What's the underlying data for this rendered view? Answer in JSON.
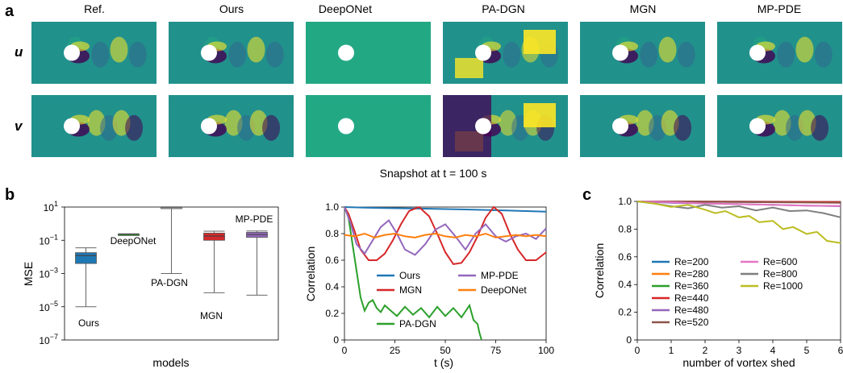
{
  "panel_letters": {
    "a": "a",
    "b": "b",
    "c": "c"
  },
  "panel_a": {
    "columns": [
      "Ref.",
      "Ours",
      "DeepONet",
      "PA-DGN",
      "MGN",
      "MP-PDE"
    ],
    "rows": [
      "u",
      "v"
    ],
    "caption": "Snapshot at t = 100 s",
    "colors": {
      "dark": "#440154",
      "mid": "#21918c",
      "bright": "#fde725",
      "teal": "#23a884",
      "blue": "#31688e"
    }
  },
  "chart_data": [
    {
      "type": "box",
      "xlabel": "models",
      "ylabel": "MSE",
      "ylog": true,
      "ylim_exp": [
        -7,
        1
      ],
      "yticks": [
        {
          "exp": 1,
          "label": "10",
          "sup": "1"
        },
        {
          "exp": -1,
          "label": "10",
          "sup": "−1"
        },
        {
          "exp": -3,
          "label": "10",
          "sup": "−3"
        },
        {
          "exp": -5,
          "label": "10",
          "sup": "−5"
        },
        {
          "exp": -7,
          "label": "10",
          "sup": "−7"
        }
      ],
      "boxes": [
        {
          "label": "Ours",
          "color": "#1f77b4",
          "whislo": 1e-05,
          "q1": 0.004,
          "med": 0.012,
          "q3": 0.018,
          "whishi": 0.035
        },
        {
          "label": "DeepONet",
          "color": "#2ca02c",
          "whislo": 0.22,
          "q1": 0.23,
          "med": 0.235,
          "q3": 0.24,
          "whishi": 0.245
        },
        {
          "label": "PA-DGN",
          "color": "#aaaaaa",
          "whislo": 0.001,
          "q1": 10,
          "med": 10,
          "q3": 10,
          "whishi": 10
        },
        {
          "label": "MGN",
          "color": "#d62728",
          "whislo": 7e-05,
          "q1": 0.1,
          "med": 0.18,
          "q3": 0.27,
          "whishi": 0.35
        },
        {
          "label": "MP-PDE",
          "color": "#9467bd",
          "whislo": 5e-05,
          "q1": 0.15,
          "med": 0.22,
          "q3": 0.3,
          "whishi": 0.36
        }
      ]
    },
    {
      "type": "line",
      "xlabel": "t (s)",
      "ylabel": "Correlation",
      "xlim": [
        0,
        100
      ],
      "ylim": [
        0,
        1
      ],
      "xticks": [
        0,
        25,
        50,
        75,
        100
      ],
      "yticks": [
        0,
        0.2,
        0.4,
        0.6,
        0.8,
        1.0
      ],
      "ytick_labels": [
        "0",
        "0.2",
        "0.4",
        "0.6",
        "0.8",
        "1.0"
      ],
      "series": [
        {
          "name": "Ours",
          "color": "#1f77b4",
          "x": [
            0,
            10,
            20,
            30,
            40,
            50,
            60,
            70,
            80,
            90,
            100
          ],
          "y": [
            1.0,
            0.995,
            0.993,
            0.99,
            0.988,
            0.985,
            0.982,
            0.978,
            0.974,
            0.97,
            0.965
          ]
        },
        {
          "name": "MGN",
          "color": "#d62728",
          "x": [
            0,
            2,
            5,
            8,
            12,
            16,
            20,
            24,
            28,
            32,
            37,
            42,
            46,
            50,
            54,
            58,
            62,
            66,
            70,
            74,
            78,
            82,
            86,
            90,
            95,
            100
          ],
          "y": [
            1.0,
            0.95,
            0.82,
            0.68,
            0.6,
            0.6,
            0.65,
            0.75,
            0.87,
            0.97,
            1.0,
            0.93,
            0.8,
            0.66,
            0.57,
            0.58,
            0.66,
            0.78,
            0.92,
            1.0,
            0.95,
            0.8,
            0.68,
            0.6,
            0.6,
            0.66
          ]
        },
        {
          "name": "PA-DGN",
          "color": "#2ca02c",
          "x": [
            0,
            2,
            4,
            6,
            8,
            10,
            12,
            14,
            16,
            18,
            20,
            23,
            26,
            30,
            34,
            38,
            42,
            46,
            50,
            54,
            58,
            62,
            64,
            66,
            67,
            68
          ],
          "y": [
            1.0,
            0.92,
            0.72,
            0.52,
            0.32,
            0.22,
            0.28,
            0.3,
            0.24,
            0.21,
            0.26,
            0.22,
            0.18,
            0.25,
            0.19,
            0.24,
            0.17,
            0.25,
            0.18,
            0.24,
            0.17,
            0.26,
            0.15,
            0.12,
            0.05,
            0.0
          ]
        },
        {
          "name": "MP-PDE",
          "color": "#9467bd",
          "x": [
            0,
            3,
            6,
            10,
            14,
            18,
            22,
            26,
            30,
            35,
            40,
            45,
            50,
            55,
            60,
            65,
            70,
            75,
            80,
            85,
            90,
            95,
            100
          ],
          "y": [
            1.0,
            0.88,
            0.72,
            0.65,
            0.75,
            0.85,
            0.9,
            0.8,
            0.68,
            0.64,
            0.72,
            0.83,
            0.87,
            0.78,
            0.68,
            0.8,
            0.87,
            0.78,
            0.74,
            0.78,
            0.8,
            0.76,
            0.84
          ]
        },
        {
          "name": "DeepONet",
          "color": "#ff7f0e",
          "x": [
            0,
            5,
            10,
            15,
            20,
            25,
            30,
            35,
            40,
            45,
            50,
            55,
            60,
            65,
            70,
            75,
            80,
            85,
            90,
            95,
            100
          ],
          "y": [
            0.79,
            0.78,
            0.8,
            0.77,
            0.79,
            0.8,
            0.78,
            0.77,
            0.79,
            0.8,
            0.78,
            0.77,
            0.79,
            0.78,
            0.8,
            0.77,
            0.78,
            0.79,
            0.78,
            0.79,
            0.78
          ]
        }
      ]
    },
    {
      "type": "line",
      "xlabel": "number of vortex shed",
      "ylabel": "Correlation",
      "xlim": [
        0,
        6
      ],
      "ylim": [
        0,
        1
      ],
      "xticks": [
        0,
        1,
        2,
        3,
        4,
        5,
        6
      ],
      "yticks": [
        0,
        0.2,
        0.4,
        0.6,
        0.8,
        1.0
      ],
      "ytick_labels": [
        "0",
        "0.2",
        "0.4",
        "0.6",
        "0.8",
        "1.0"
      ],
      "series": [
        {
          "name": "Re=200",
          "color": "#1f77b4",
          "x": [
            0,
            6
          ],
          "y": [
            1.0,
            0.997
          ]
        },
        {
          "name": "Re=280",
          "color": "#ff7f0e",
          "x": [
            0,
            6
          ],
          "y": [
            1.0,
            0.995
          ]
        },
        {
          "name": "Re=360",
          "color": "#2ca02c",
          "x": [
            0,
            6
          ],
          "y": [
            1.0,
            0.993
          ]
        },
        {
          "name": "Re=440",
          "color": "#d62728",
          "x": [
            0,
            6
          ],
          "y": [
            1.0,
            0.996
          ]
        },
        {
          "name": "Re=480",
          "color": "#9467bd",
          "x": [
            0,
            1,
            2,
            3,
            4,
            5,
            6
          ],
          "y": [
            1.0,
            0.99,
            0.985,
            0.98,
            0.975,
            0.97,
            0.965
          ]
        },
        {
          "name": "Re=520",
          "color": "#8c564b",
          "x": [
            0,
            6
          ],
          "y": [
            1.0,
            0.99
          ]
        },
        {
          "name": "Re=600",
          "color": "#e377c2",
          "x": [
            0,
            1,
            2,
            3,
            4,
            5,
            6
          ],
          "y": [
            1.0,
            0.995,
            0.985,
            0.98,
            0.975,
            0.97,
            0.968
          ]
        },
        {
          "name": "Re=800",
          "color": "#7f7f7f",
          "x": [
            0,
            0.5,
            1,
            1.5,
            2,
            2.5,
            3,
            3.5,
            4,
            4.5,
            5,
            5.5,
            6
          ],
          "y": [
            1.0,
            0.985,
            0.965,
            0.95,
            0.975,
            0.955,
            0.965,
            0.935,
            0.955,
            0.93,
            0.935,
            0.915,
            0.885
          ]
        },
        {
          "name": "Re=1000",
          "color": "#bcbd22",
          "x": [
            0,
            0.5,
            1,
            1.5,
            2,
            2.3,
            2.6,
            3,
            3.3,
            3.6,
            4,
            4.3,
            4.6,
            5,
            5.3,
            5.6,
            6
          ],
          "y": [
            1.0,
            0.985,
            0.96,
            0.975,
            0.94,
            0.915,
            0.93,
            0.885,
            0.895,
            0.85,
            0.86,
            0.8,
            0.815,
            0.765,
            0.78,
            0.715,
            0.7
          ]
        }
      ]
    }
  ]
}
